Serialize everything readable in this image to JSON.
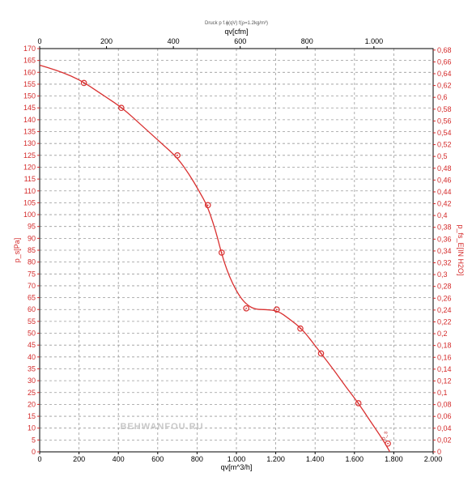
{
  "chart_data": {
    "type": "line",
    "title": "Druck p f.ϕ(qV) f(ρ=1.2kg/m³)",
    "xlabel": "qv[m^3/h]",
    "x2label": "qv[cfm]",
    "ylabel": "p_s[Pa]",
    "y2label": "p_fs_E[IN H2O]",
    "watermark": "BEHWANFOU.RU",
    "curve_tag": "p_s",
    "xlim": [
      0,
      2000
    ],
    "ylim": [
      0,
      170
    ],
    "x2lim": [
      0,
      1177.2
    ],
    "y2lim": [
      0,
      0.6825
    ],
    "x_ticks": [
      "0",
      "200",
      "400",
      "600",
      "800",
      "1.000",
      "1.200",
      "1.400",
      "1.600",
      "1.800",
      "2.000"
    ],
    "x2_ticks": [
      "0",
      "200",
      "400",
      "600",
      "800",
      "1.000"
    ],
    "y_ticks": [
      "0",
      "5",
      "10",
      "15",
      "20",
      "25",
      "30",
      "35",
      "40",
      "45",
      "50",
      "55",
      "60",
      "65",
      "70",
      "75",
      "80",
      "85",
      "90",
      "95",
      "100",
      "105",
      "110",
      "115",
      "120",
      "125",
      "130",
      "135",
      "140",
      "145",
      "150",
      "155",
      "160",
      "165",
      "170"
    ],
    "y2_ticks": [
      "0",
      "0,02",
      "0,04",
      "0,06",
      "0,08",
      "0,1",
      "0,12",
      "0,14",
      "0,16",
      "0,18",
      "0,2",
      "0,22",
      "0,24",
      "0,26",
      "0,28",
      "0,3",
      "0,32",
      "0,34",
      "0,36",
      "0,38",
      "0,4",
      "0,42",
      "0,44",
      "0,46",
      "0,48",
      "0,5",
      "0,52",
      "0,54",
      "0,56",
      "0,58",
      "0,6",
      "0,62",
      "0,64",
      "0,66",
      "0,68"
    ],
    "grid": true,
    "series": [
      {
        "color": "#d93030",
        "curve": [
          [
            0,
            163
          ],
          [
            80,
            161
          ],
          [
            160,
            158.5
          ],
          [
            230,
            155.5
          ],
          [
            320,
            150.5
          ],
          [
            420,
            145
          ],
          [
            520,
            137.5
          ],
          [
            620,
            130
          ],
          [
            700,
            124
          ],
          [
            760,
            117
          ],
          [
            810,
            110
          ],
          [
            850,
            104
          ],
          [
            880,
            97
          ],
          [
            905,
            90
          ],
          [
            925,
            83.5
          ],
          [
            950,
            77
          ],
          [
            980,
            71
          ],
          [
            1020,
            65
          ],
          [
            1060,
            61.5
          ],
          [
            1100,
            60
          ],
          [
            1150,
            60
          ],
          [
            1210,
            59.5
          ],
          [
            1270,
            56
          ],
          [
            1330,
            52
          ],
          [
            1380,
            47
          ],
          [
            1430,
            41.5
          ],
          [
            1500,
            34
          ],
          [
            1560,
            27
          ],
          [
            1620,
            20.5
          ],
          [
            1680,
            13
          ],
          [
            1730,
            7
          ],
          [
            1770,
            1.5
          ],
          [
            1780,
            0
          ]
        ],
        "markers": [
          [
            225,
            155.5
          ],
          [
            415,
            145
          ],
          [
            700,
            125
          ],
          [
            855,
            104
          ],
          [
            925,
            84
          ],
          [
            1050,
            60.5
          ],
          [
            1205,
            60
          ],
          [
            1325,
            52
          ],
          [
            1430,
            41.5
          ],
          [
            1620,
            20.5
          ],
          [
            1770,
            3.5
          ]
        ]
      }
    ]
  }
}
